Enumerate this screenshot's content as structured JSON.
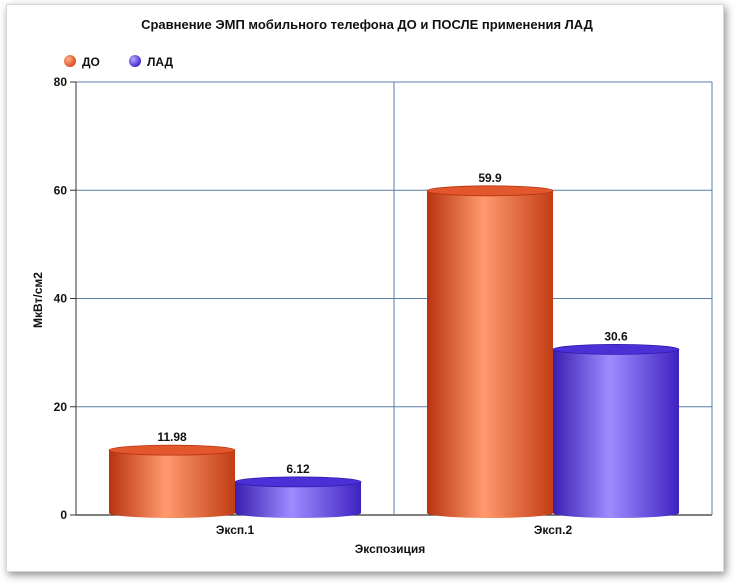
{
  "chart_data": {
    "type": "bar",
    "title": "Сравнение ЭМП  мобильного телефона ДО и ПОСЛЕ применения ЛАД",
    "xlabel": "Экспозиция",
    "ylabel": "МкВт/см2",
    "categories": [
      "Эксп.1",
      "Эксп.2"
    ],
    "series": [
      {
        "name": "ДО",
        "values": [
          11.98,
          59.9
        ],
        "labels": [
          "11.98",
          "59.9"
        ],
        "color": "#e8552a"
      },
      {
        "name": "ЛАД",
        "values": [
          6.12,
          30.6
        ],
        "labels": [
          "6.12",
          "30.6"
        ],
        "color": "#4a2ee0"
      }
    ],
    "ylim": [
      0,
      80
    ],
    "yticks": [
      0,
      20,
      40,
      60,
      80
    ],
    "grid": true,
    "legend_position": "top-left"
  }
}
